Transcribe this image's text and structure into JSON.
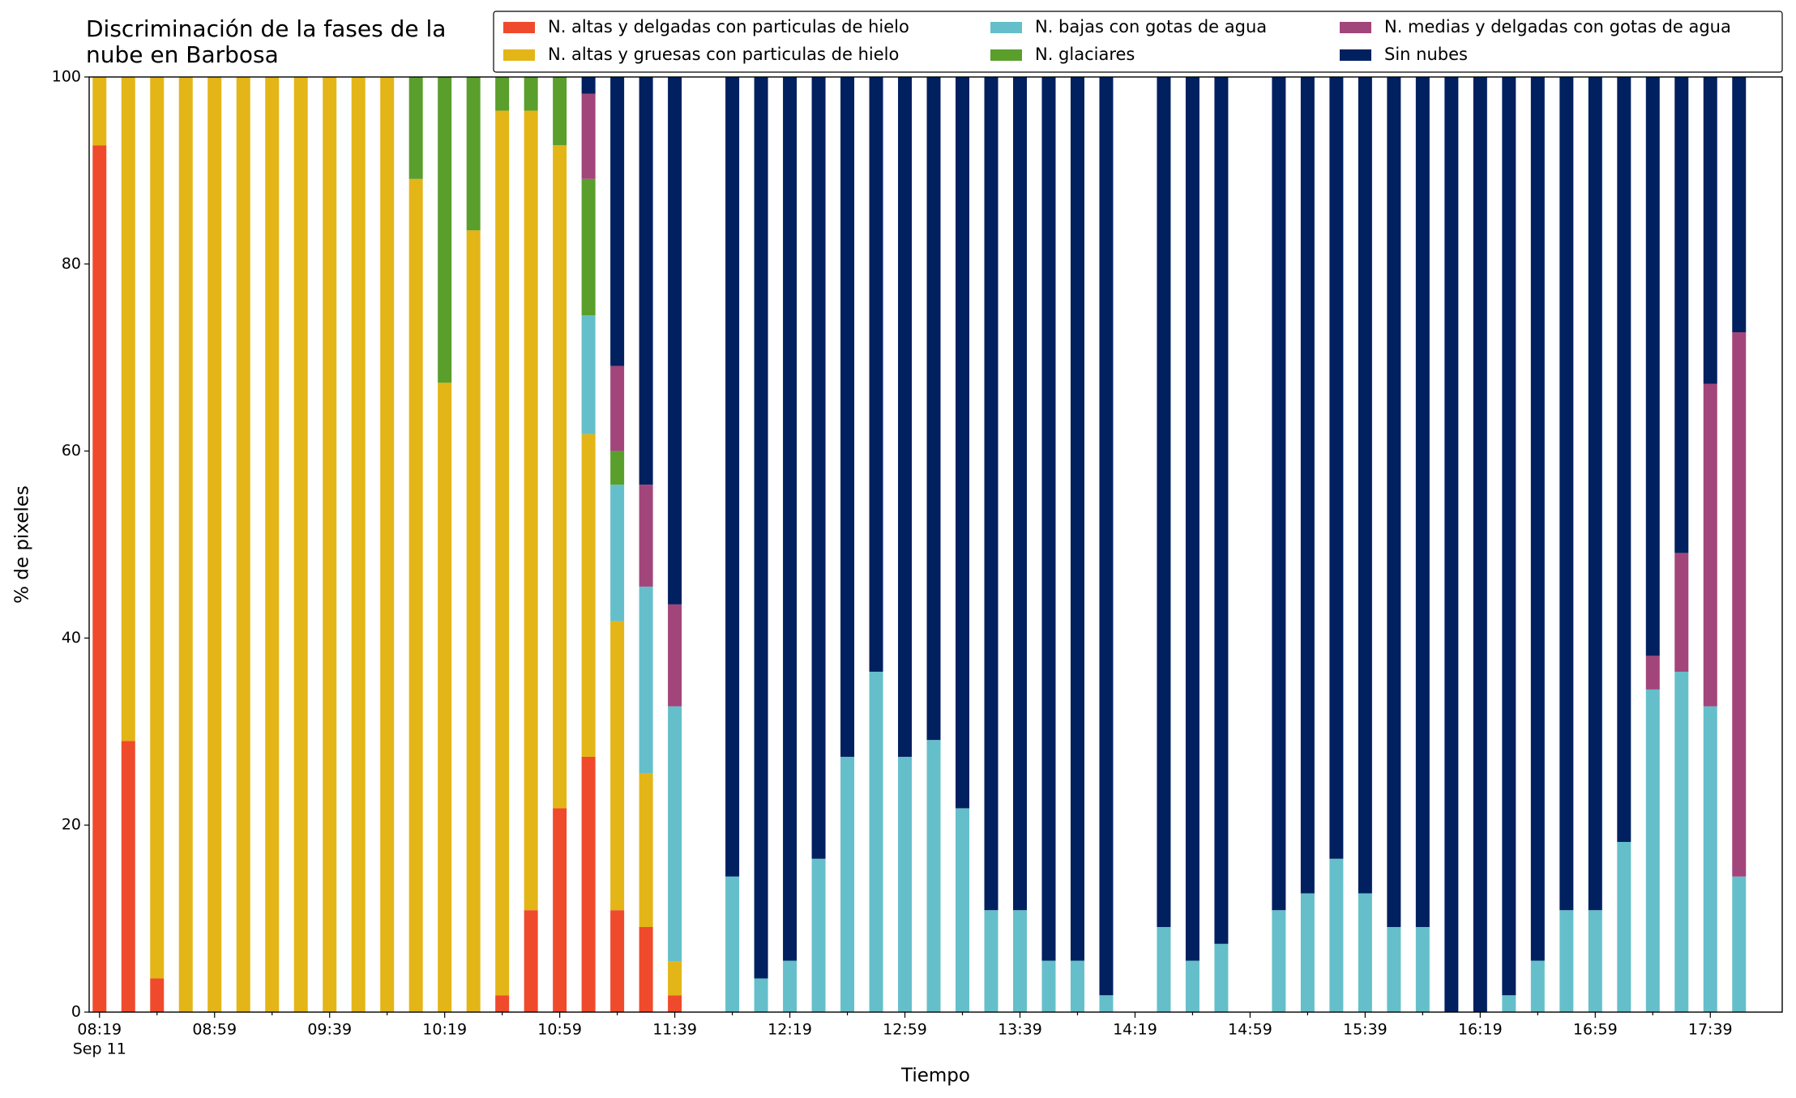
{
  "chart_data": {
    "type": "stacked_bar",
    "title": "Discriminación de la fases de la nube en Barbosa",
    "xlabel": "Tiempo",
    "ylabel": "% de pixeles",
    "x_sublabel": "Sep 11",
    "categories": [
      "08:19",
      null,
      null,
      null,
      "08:59",
      null,
      null,
      null,
      "09:39",
      null,
      null,
      null,
      "10:19",
      null,
      null,
      null,
      "10:59",
      null,
      null,
      null,
      "11:39",
      null,
      null,
      null,
      "12:19",
      null,
      null,
      null,
      "12:59",
      null,
      null,
      null,
      "13:39",
      null,
      null,
      null,
      "14:19",
      null,
      null,
      null,
      "14:59",
      null,
      null,
      null,
      "15:39",
      null,
      null,
      null,
      "16:19",
      null,
      null,
      null,
      "16:59",
      null,
      null,
      null,
      "17:39",
      null
    ],
    "ylim": [
      0,
      100
    ],
    "yticks": [
      0,
      20,
      40,
      60,
      80,
      100
    ],
    "grid": false,
    "legend": "top",
    "series": [
      {
        "name": "N. altas y delgadas con particulas de hielo",
        "color": "#f04a2c",
        "values": [
          92.7,
          29,
          3.6,
          0,
          0,
          0,
          0,
          0,
          0,
          0,
          0,
          0,
          0,
          0,
          1.8,
          10.9,
          21.8,
          27.3,
          10.9,
          9.1,
          1.8,
          null,
          0,
          0,
          0,
          0,
          0,
          0,
          0,
          0,
          0,
          0,
          0,
          0,
          0,
          0,
          null,
          0,
          0,
          0,
          null,
          0,
          0,
          0,
          0,
          0,
          0,
          0,
          0,
          0,
          0,
          0,
          0,
          0,
          0,
          0,
          0,
          0
        ]
      },
      {
        "name": "N. altas y gruesas con particulas de hielo",
        "color": "#e3b517",
        "values": [
          7.3,
          71,
          96.4,
          100,
          100,
          100,
          100,
          100,
          100,
          100,
          100,
          89.1,
          67.3,
          83.6,
          94.6,
          85.5,
          70.9,
          34.5,
          30.9,
          16.4,
          3.6,
          null,
          0,
          0,
          0,
          0,
          0,
          0,
          0,
          0,
          0,
          0,
          0,
          0,
          0,
          0,
          null,
          0,
          0,
          0,
          null,
          0,
          0,
          0,
          0,
          0,
          0,
          0,
          0,
          0,
          0,
          0,
          0,
          0,
          0,
          0,
          0,
          0
        ]
      },
      {
        "name": "N. bajas con gotas de agua",
        "color": "#65bfca",
        "values": [
          0,
          0,
          0,
          0,
          0,
          0,
          0,
          0,
          0,
          0,
          0,
          0,
          0,
          0,
          0,
          0,
          0,
          12.7,
          14.6,
          20,
          27.3,
          null,
          14.5,
          3.6,
          5.5,
          16.4,
          27.3,
          36.4,
          27.3,
          29.1,
          21.8,
          10.9,
          10.9,
          5.5,
          5.5,
          1.8,
          null,
          9.1,
          5.5,
          7.3,
          null,
          10.9,
          12.7,
          16.4,
          12.7,
          9.1,
          9.1,
          0,
          0,
          1.8,
          5.5,
          10.9,
          10.9,
          18.2,
          34.5,
          36.4,
          32.7,
          14.5
        ]
      },
      {
        "name": "N. glaciares",
        "color": "#5a9e2c",
        "values": [
          0,
          0,
          0,
          0,
          0,
          0,
          0,
          0,
          0,
          0,
          0,
          10.9,
          32.7,
          16.4,
          3.6,
          3.6,
          7.3,
          14.6,
          3.6,
          0,
          0,
          null,
          0,
          0,
          0,
          0,
          0,
          0,
          0,
          0,
          0,
          0,
          0,
          0,
          0,
          0,
          null,
          0,
          0,
          0,
          null,
          0,
          0,
          0,
          0,
          0,
          0,
          0,
          0,
          0,
          0,
          0,
          0,
          0,
          0,
          0,
          0,
          0
        ]
      },
      {
        "name": "N. medias y delgadas con gotas de agua",
        "color": "#a2457a",
        "values": [
          0,
          0,
          0,
          0,
          0,
          0,
          0,
          0,
          0,
          0,
          0,
          0,
          0,
          0,
          0,
          0,
          0,
          9.1,
          9.1,
          10.9,
          10.9,
          null,
          0,
          0,
          0,
          0,
          0,
          0,
          0,
          0,
          0,
          0,
          0,
          0,
          0,
          0,
          null,
          0,
          0,
          0,
          null,
          0,
          0,
          0,
          0,
          0,
          0,
          0,
          0,
          0,
          0,
          0,
          0,
          0,
          3.6,
          12.7,
          34.5,
          58.2
        ]
      },
      {
        "name": "Sin nubes",
        "color": "#00205f",
        "values": [
          0,
          0,
          0,
          0,
          0,
          0,
          0,
          0,
          0,
          0,
          0,
          0,
          0,
          0,
          0,
          0,
          0,
          1.8,
          30.9,
          43.6,
          56.4,
          null,
          85.5,
          96.4,
          94.5,
          83.6,
          72.7,
          63.6,
          72.7,
          70.9,
          78.2,
          89.1,
          89.1,
          94.5,
          94.5,
          98.2,
          null,
          90.9,
          94.5,
          92.7,
          null,
          89.1,
          87.3,
          83.6,
          87.3,
          90.9,
          90.9,
          100,
          100,
          98.2,
          94.5,
          89.1,
          89.1,
          81.8,
          61.9,
          50.9,
          32.8,
          27.3
        ]
      }
    ]
  }
}
